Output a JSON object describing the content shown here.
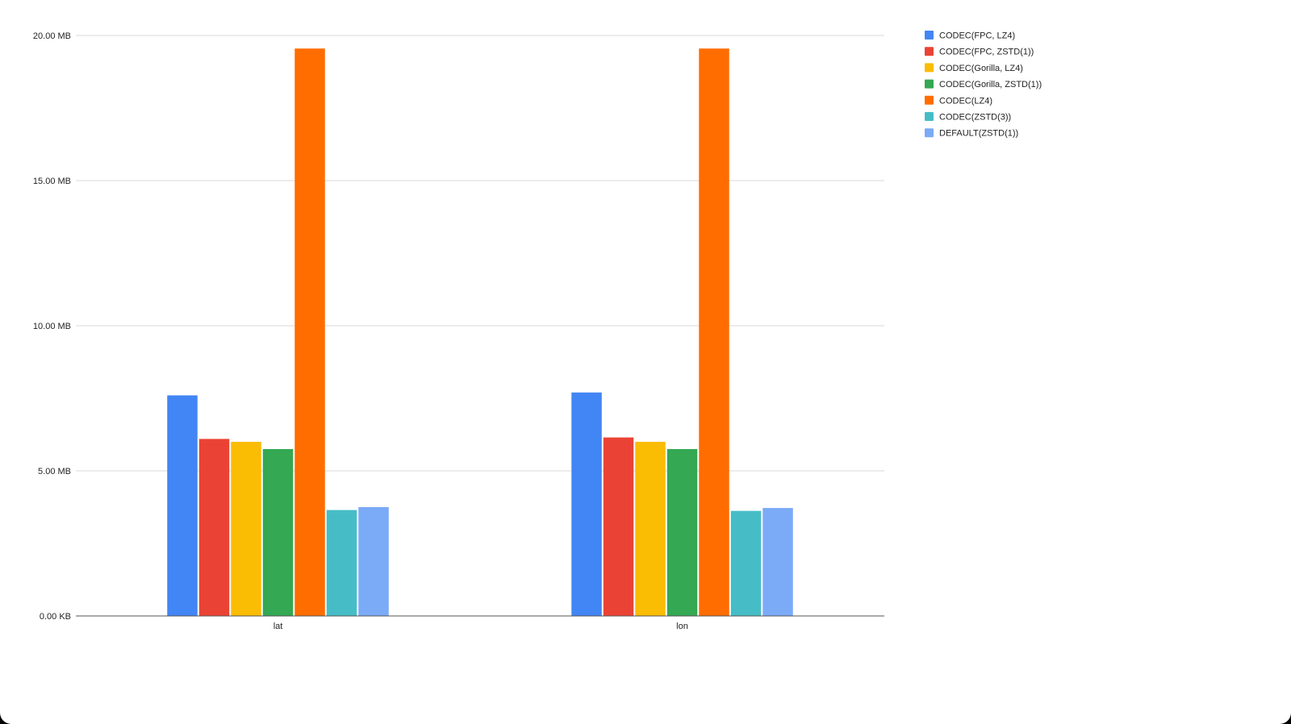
{
  "chart_data": {
    "type": "bar",
    "title": "",
    "xlabel": "",
    "ylabel": "",
    "categories": [
      "lat",
      "lon"
    ],
    "ylim": [
      0,
      20
    ],
    "y_unit": "MB",
    "yticks": [
      {
        "value": 0,
        "label": "0.00 KB"
      },
      {
        "value": 5,
        "label": "5.00 MB"
      },
      {
        "value": 10,
        "label": "10.00 MB"
      },
      {
        "value": 15,
        "label": "15.00 MB"
      },
      {
        "value": 20,
        "label": "20.00 MB"
      }
    ],
    "grid": true,
    "legend_position": "top-right",
    "series": [
      {
        "name": "CODEC(FPC, LZ4)",
        "color": "#4285F4",
        "values": [
          7.6,
          7.7
        ]
      },
      {
        "name": "CODEC(FPC, ZSTD(1))",
        "color": "#EA4335",
        "values": [
          6.1,
          6.15
        ]
      },
      {
        "name": "CODEC(Gorilla, LZ4)",
        "color": "#FBBC04",
        "values": [
          6.0,
          6.0
        ]
      },
      {
        "name": "CODEC(Gorilla, ZSTD(1))",
        "color": "#34A853",
        "values": [
          5.75,
          5.75
        ]
      },
      {
        "name": "CODEC(LZ4)",
        "color": "#FF6D01",
        "values": [
          19.55,
          19.55
        ]
      },
      {
        "name": "CODEC(ZSTD(3))",
        "color": "#46BDC6",
        "values": [
          3.65,
          3.62
        ]
      },
      {
        "name": "DEFAULT(ZSTD(1))",
        "color": "#7BAAF7",
        "values": [
          3.75,
          3.72
        ]
      }
    ]
  }
}
